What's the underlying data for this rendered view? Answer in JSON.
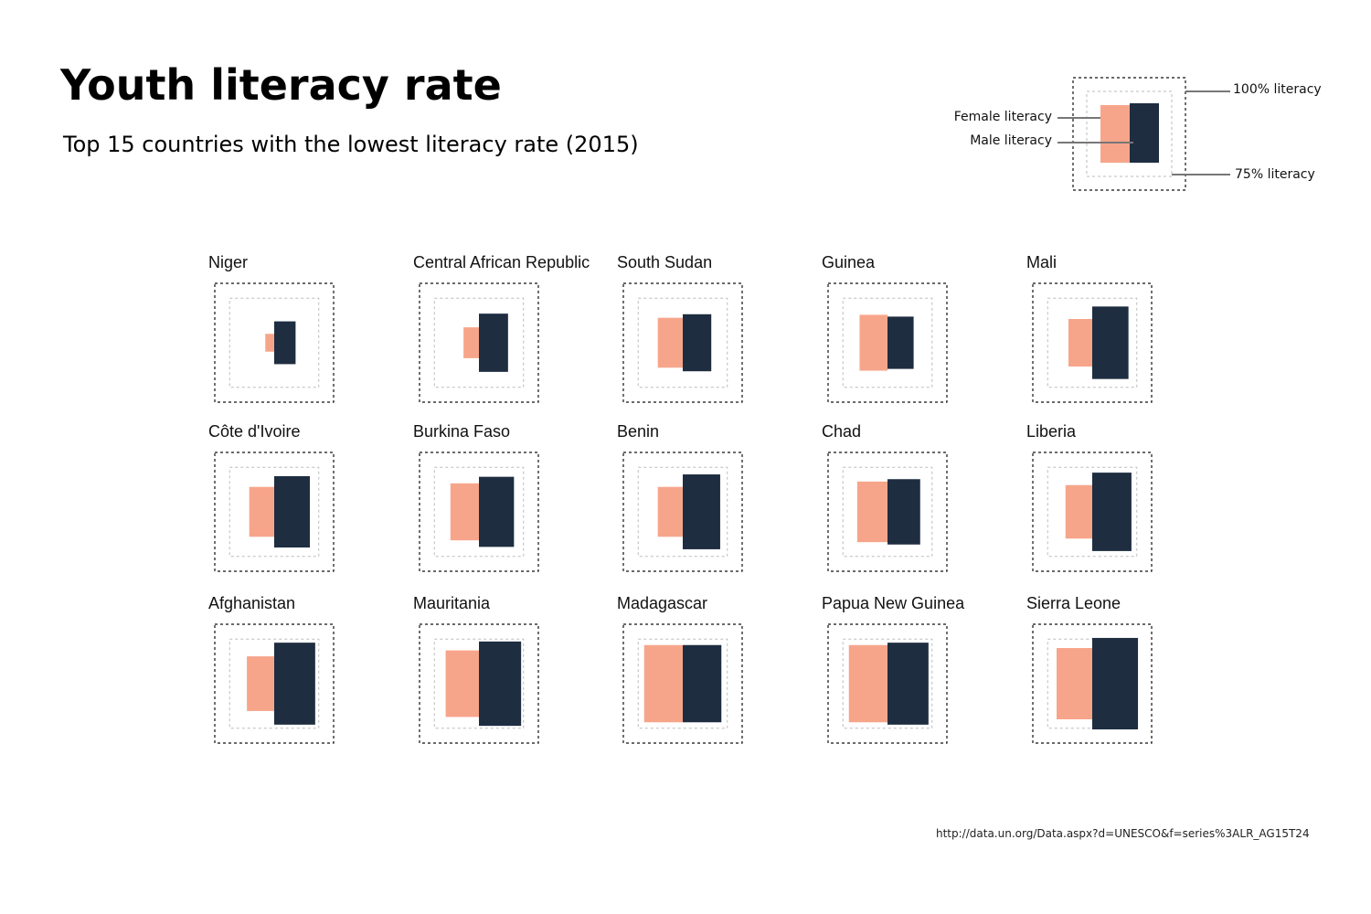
{
  "title": "Youth literacy rate",
  "subtitle": "Top 15 countries with the lowest literacy rate (2015)",
  "source": "http://data.un.org/Data.aspx?d=UNESCO&f=series%3ALR_AG15T24",
  "legend": {
    "female": "Female literacy",
    "male": "Male literacy",
    "outer": "100% literacy",
    "inner": "75% literacy"
  },
  "colors": {
    "female": "#f7a58a",
    "male": "#1e2d40",
    "outer_border": "#111111",
    "inner_border": "#bbbbbb"
  },
  "chart_data": {
    "type": "bar",
    "title": "Youth literacy rate",
    "subtitle": "Top 15 countries with the lowest literacy rate (2015)",
    "categories": [
      "Niger",
      "Central African Republic",
      "South Sudan",
      "Guinea",
      "Mali",
      "Côte d'Ivoire",
      "Burkina Faso",
      "Benin",
      "Chad",
      "Liberia",
      "Afghanistan",
      "Mauritania",
      "Madagascar",
      "Papua New Guinea",
      "Sierra Leone"
    ],
    "series": [
      {
        "name": "Female literacy",
        "values": [
          15,
          26,
          42,
          47,
          40,
          42,
          48,
          42,
          51,
          45,
          46,
          56,
          65,
          65,
          60
        ]
      },
      {
        "name": "Male literacy",
        "values": [
          36,
          49,
          48,
          44,
          61,
          60,
          59,
          63,
          55,
          66,
          69,
          71,
          65,
          69,
          77
        ]
      }
    ],
    "ylim": [
      0,
      100
    ],
    "grid": false
  }
}
